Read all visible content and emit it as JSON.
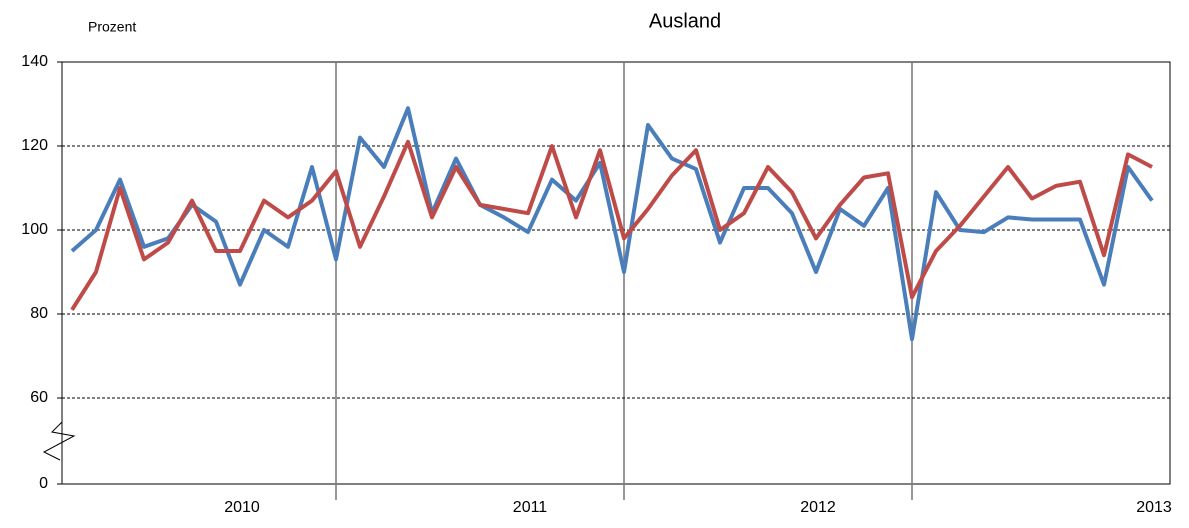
{
  "chart_data": {
    "type": "line",
    "title": "Ausland",
    "y_label": "Prozent",
    "categories": [
      null,
      null,
      null,
      null,
      null,
      null,
      null,
      "2010",
      null,
      null,
      null,
      null,
      null,
      null,
      null,
      null,
      null,
      null,
      null,
      "2011",
      null,
      null,
      null,
      null,
      null,
      null,
      null,
      null,
      null,
      null,
      null,
      "2012",
      null,
      null,
      null,
      null,
      null,
      null,
      null,
      null,
      null,
      null,
      null,
      null,
      null,
      "2013"
    ],
    "series": [
      {
        "color": "#4a7ebb",
        "values": [
          95,
          100,
          112,
          96,
          98,
          106,
          102,
          87,
          100,
          96,
          115,
          93,
          122,
          115,
          129,
          104,
          117,
          106,
          103,
          99.5,
          112,
          107,
          116,
          90,
          125,
          117,
          114.5,
          97,
          110,
          110,
          104,
          90,
          105,
          101,
          110,
          74,
          109,
          100,
          99.5,
          103,
          102.5,
          102.5,
          102.5,
          87,
          115,
          107
        ]
      },
      {
        "color": "#be4b48",
        "values": [
          81,
          90,
          110,
          93,
          97,
          107,
          95,
          95,
          107,
          103,
          107,
          114,
          96,
          108,
          121,
          103,
          115,
          106,
          105,
          104,
          120,
          103,
          119,
          98,
          105,
          113,
          119,
          100,
          104,
          115,
          109,
          98,
          106,
          112.5,
          113.5,
          84,
          95,
          101,
          108,
          115,
          107.5,
          110.5,
          111.5,
          94,
          118,
          115
        ]
      }
    ],
    "ylim": [
      0,
      140
    ],
    "yticks": [
      0,
      60,
      80,
      100,
      120,
      140
    ],
    "axis_break": true,
    "grid": true
  }
}
